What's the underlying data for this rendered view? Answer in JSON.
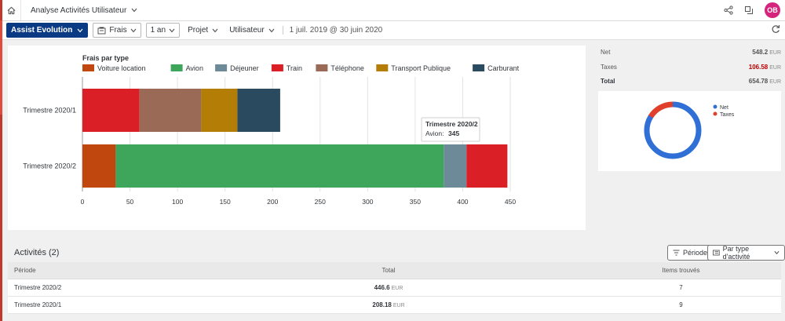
{
  "shell": {
    "app_title": "Analyse Activités Utilisateur",
    "avatar_initials": "OB"
  },
  "toolbar": {
    "assist_label": "Assist Evolution",
    "frais_label": "Frais",
    "period_label": "1 an",
    "projet_label": "Projet",
    "utilisateur_label": "Utilisateur",
    "date_range": "1 juil. 2019 @ 30 juin 2020"
  },
  "summary": {
    "net_label": "Net",
    "net_value": "548.2",
    "taxes_label": "Taxes",
    "taxes_value": "106.58",
    "total_label": "Total",
    "total_value": "654.78",
    "currency": "EUR"
  },
  "donut": {
    "legend": [
      "Net",
      "Taxes"
    ],
    "values": [
      548.2,
      106.58
    ],
    "colors": [
      "#2f6fd6",
      "#e0402b"
    ]
  },
  "chart_data": {
    "type": "bar",
    "orientation": "horizontal",
    "stacked": true,
    "title": "Frais par type",
    "categories": [
      "Trimestre 2020/1",
      "Trimestre 2020/2"
    ],
    "series": [
      {
        "name": "Voiture location",
        "color": "#c0470e",
        "values": [
          0,
          35
        ]
      },
      {
        "name": "Avion",
        "color": "#3ea65b",
        "values": [
          0,
          345
        ]
      },
      {
        "name": "Déjeuner",
        "color": "#6d8a99",
        "values": [
          0,
          24
        ]
      },
      {
        "name": "Train",
        "color": "#db1f26",
        "values": [
          60,
          43
        ]
      },
      {
        "name": "Téléphone",
        "color": "#9a6a56",
        "values": [
          65,
          0
        ]
      },
      {
        "name": "Transport Publique",
        "color": "#b37d06",
        "values": [
          38,
          0
        ]
      },
      {
        "name": "Carburant",
        "color": "#2a4b5f",
        "values": [
          45,
          0
        ]
      }
    ],
    "xlim": [
      0,
      450
    ],
    "xticks": [
      0,
      50,
      100,
      150,
      200,
      250,
      300,
      350,
      400,
      450
    ],
    "grid": true,
    "legend_position": "top",
    "tooltip": {
      "title": "Trimestre 2020/2",
      "label": "Avion:",
      "value": "345"
    }
  },
  "activities": {
    "title": "Activités (2)",
    "periode_btn": "Période",
    "type_btn": "Par type d'activité",
    "columns": [
      "Période",
      "Total",
      "Items trouvés"
    ],
    "rows": [
      {
        "periode": "Trimestre 2020/2",
        "total": "446.6",
        "unit": "EUR",
        "items": "7"
      },
      {
        "periode": "Trimestre 2020/1",
        "total": "208.18",
        "unit": "EUR",
        "items": "9"
      }
    ]
  }
}
